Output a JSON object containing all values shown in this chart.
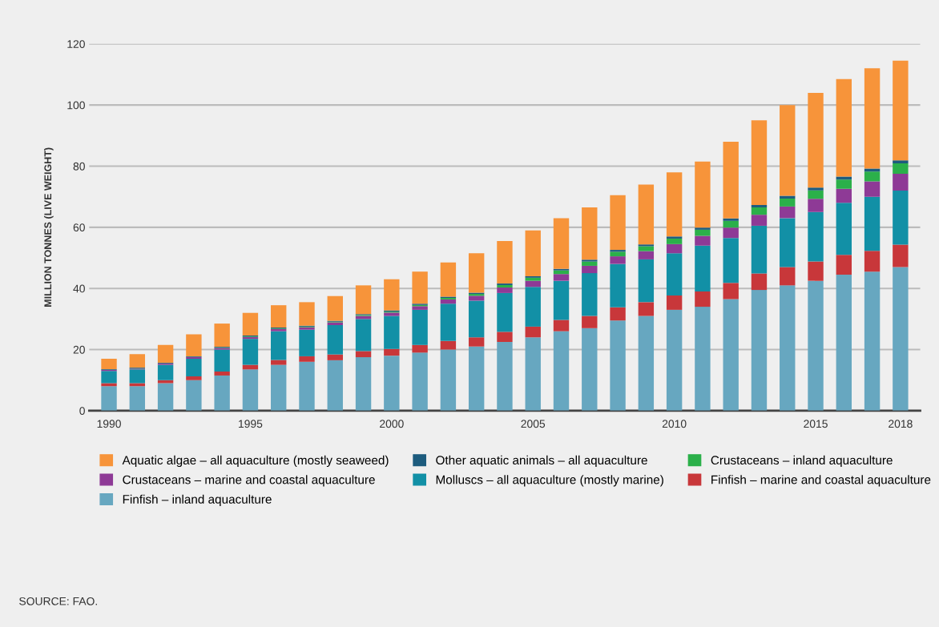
{
  "chart_data": {
    "type": "bar",
    "stacked": true,
    "ylabel": "MILLION TONNES (LIVE WEIGHT)",
    "categories": [
      "1990",
      null,
      null,
      null,
      null,
      "1995",
      null,
      null,
      null,
      null,
      "2000",
      null,
      null,
      null,
      null,
      "2005",
      null,
      null,
      null,
      null,
      "2010",
      null,
      null,
      null,
      null,
      "2015",
      null,
      null,
      "2018"
    ],
    "series": [
      {
        "name": "Finfish – inland aquaculture",
        "color": "#67a7c0",
        "values": [
          8,
          8,
          9,
          10,
          11.5,
          13.5,
          15,
          16,
          16.5,
          17.5,
          18,
          19,
          20,
          21,
          22.5,
          24,
          26,
          27,
          29.5,
          31,
          33,
          34,
          36.5,
          39.5,
          41,
          42.5,
          44.5,
          45.5,
          47
        ]
      },
      {
        "name": "Finfish – marine and coastal aquaculture",
        "color": "#c8373a",
        "values": [
          1,
          1,
          1,
          1.2,
          1.3,
          1.5,
          1.6,
          1.8,
          1.9,
          2,
          2.2,
          2.5,
          2.8,
          3,
          3.3,
          3.5,
          3.7,
          4,
          4.3,
          4.5,
          4.7,
          5,
          5.3,
          5.4,
          6,
          6.3,
          6.5,
          6.8,
          7.3
        ]
      },
      {
        "name": "Molluscs – all aquaculture (mostly marine)",
        "color": "#1290a6",
        "values": [
          4,
          4.5,
          5,
          5.8,
          7.2,
          8.5,
          9.4,
          8.7,
          9.6,
          10.5,
          10.8,
          11.5,
          12.2,
          12,
          12.7,
          13,
          12.8,
          14,
          14.2,
          14,
          13.8,
          15,
          14.7,
          15.6,
          16,
          16.2,
          17,
          17.7,
          17.7
        ]
      },
      {
        "name": "Crustaceans – marine and coastal aquaculture",
        "color": "#8e3a96",
        "values": [
          0.3,
          0.3,
          0.4,
          0.5,
          0.5,
          0.6,
          0.7,
          0.8,
          0.9,
          1.0,
          1.1,
          1.2,
          1.4,
          1.6,
          1.8,
          2.0,
          2.2,
          2.4,
          2.5,
          2.7,
          3.0,
          3.2,
          3.4,
          3.6,
          3.8,
          4.3,
          4.6,
          5,
          5.5
        ]
      },
      {
        "name": "Crustaceans – inland aquaculture",
        "color": "#2bb04a",
        "values": [
          0.1,
          0.1,
          0.1,
          0.1,
          0.1,
          0.2,
          0.2,
          0.2,
          0.2,
          0.3,
          0.3,
          0.4,
          0.5,
          0.6,
          0.8,
          1.0,
          1.2,
          1.4,
          1.5,
          1.6,
          1.8,
          2.0,
          2.2,
          2.4,
          2.6,
          2.8,
          3.0,
          3.2,
          3.4
        ]
      },
      {
        "name": "Other aquatic animals – all aquaculture",
        "color": "#1d5c7e",
        "values": [
          0.2,
          0.2,
          0.2,
          0.2,
          0.3,
          0.3,
          0.3,
          0.3,
          0.3,
          0.3,
          0.4,
          0.4,
          0.4,
          0.4,
          0.5,
          0.5,
          0.5,
          0.6,
          0.6,
          0.6,
          0.7,
          0.7,
          0.8,
          0.8,
          0.9,
          0.9,
          1.0,
          1.0,
          1.0
        ]
      },
      {
        "name": "Aquatic algae – all aquaculture (mostly seaweed)",
        "color": "#f7943a",
        "values": [
          3.4,
          4.4,
          5.8,
          7.2,
          7.6,
          7.4,
          7.3,
          7.7,
          8.1,
          9.4,
          10.2,
          10.5,
          11.2,
          12.9,
          13.9,
          15,
          16.6,
          17.1,
          17.9,
          19.6,
          21,
          21.6,
          25.1,
          27.7,
          29.7,
          31,
          31.9,
          32.8,
          32.6
        ]
      }
    ],
    "ylim": [
      0,
      120
    ],
    "yticks": [
      0,
      20,
      40,
      60,
      80,
      100,
      120
    ],
    "grid": "y",
    "legend": "bottom",
    "annotations": [
      "SOURCE: FAO."
    ]
  }
}
